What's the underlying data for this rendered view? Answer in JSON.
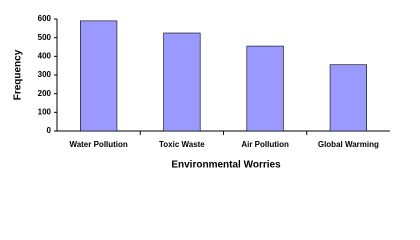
{
  "chart_data": {
    "type": "bar",
    "x_label": "Environmental Worries",
    "y_label": "Frequency",
    "categories": [
      "Water Pollution",
      "Toxic Waste",
      "Air Pollution",
      "Global Warming"
    ],
    "values": [
      590,
      525,
      455,
      355
    ],
    "color": "#9999ff",
    "ylim": [
      0,
      600
    ],
    "yticks": [
      0,
      100,
      200,
      300,
      400,
      500,
      600
    ],
    "grid": false
  }
}
